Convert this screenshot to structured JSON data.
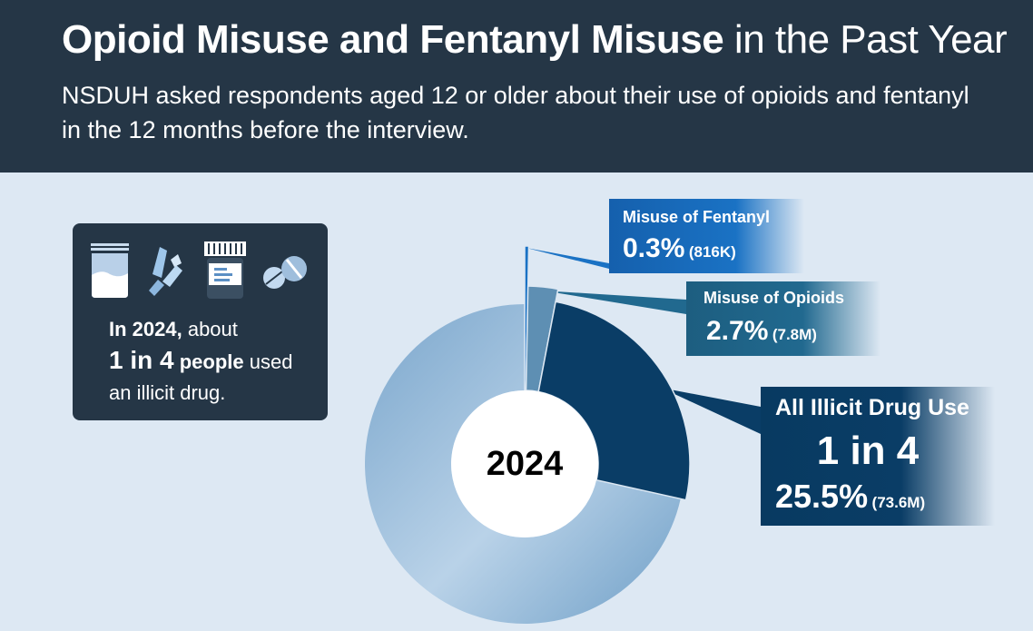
{
  "header": {
    "title_bold": "Opioid Misuse and Fentanyl Misuse",
    "title_regular": "in the Past Year",
    "subtitle": "NSDUH asked respondents aged 12 or older about their use of opioids and fentanyl in the 12 months before the interview."
  },
  "info_box": {
    "icons": [
      "powder-bag-icon",
      "crystals-icon",
      "pill-bottle-icon",
      "pills-icon"
    ],
    "year_text": "In 2024,",
    "about_text": " about",
    "ratio_text": "1 in 4",
    "people_text": " people",
    "used_text": " used",
    "line3": "an illicit drug."
  },
  "chart_data": {
    "type": "pie",
    "center_label": "2024",
    "slices": [
      {
        "label": "Misuse of Fentanyl",
        "percent": 0.3,
        "count": "(816K)",
        "color": "#1a72c4"
      },
      {
        "label": "Misuse of Opioids",
        "percent": 2.7,
        "count": "(7.8M)",
        "color": "#5e8fb3"
      },
      {
        "label": "All Illicit Drug Use",
        "percent": 25.5,
        "count": "(73.6M)",
        "ratio": "1 in 4",
        "color": "#0a3d66"
      }
    ],
    "remainder_color": "#9cbfdb"
  },
  "labels": {
    "fentanyl": {
      "title": "Misuse of Fentanyl",
      "pct": "0.3%",
      "count": "(816K)"
    },
    "opioids": {
      "title": "Misuse of Opioids",
      "pct": "2.7%",
      "count": "(7.8M)"
    },
    "illicit": {
      "title": "All Illicit Drug Use",
      "ratio": "1 in 4",
      "pct": "25.5%",
      "count": "(73.6M)"
    }
  }
}
